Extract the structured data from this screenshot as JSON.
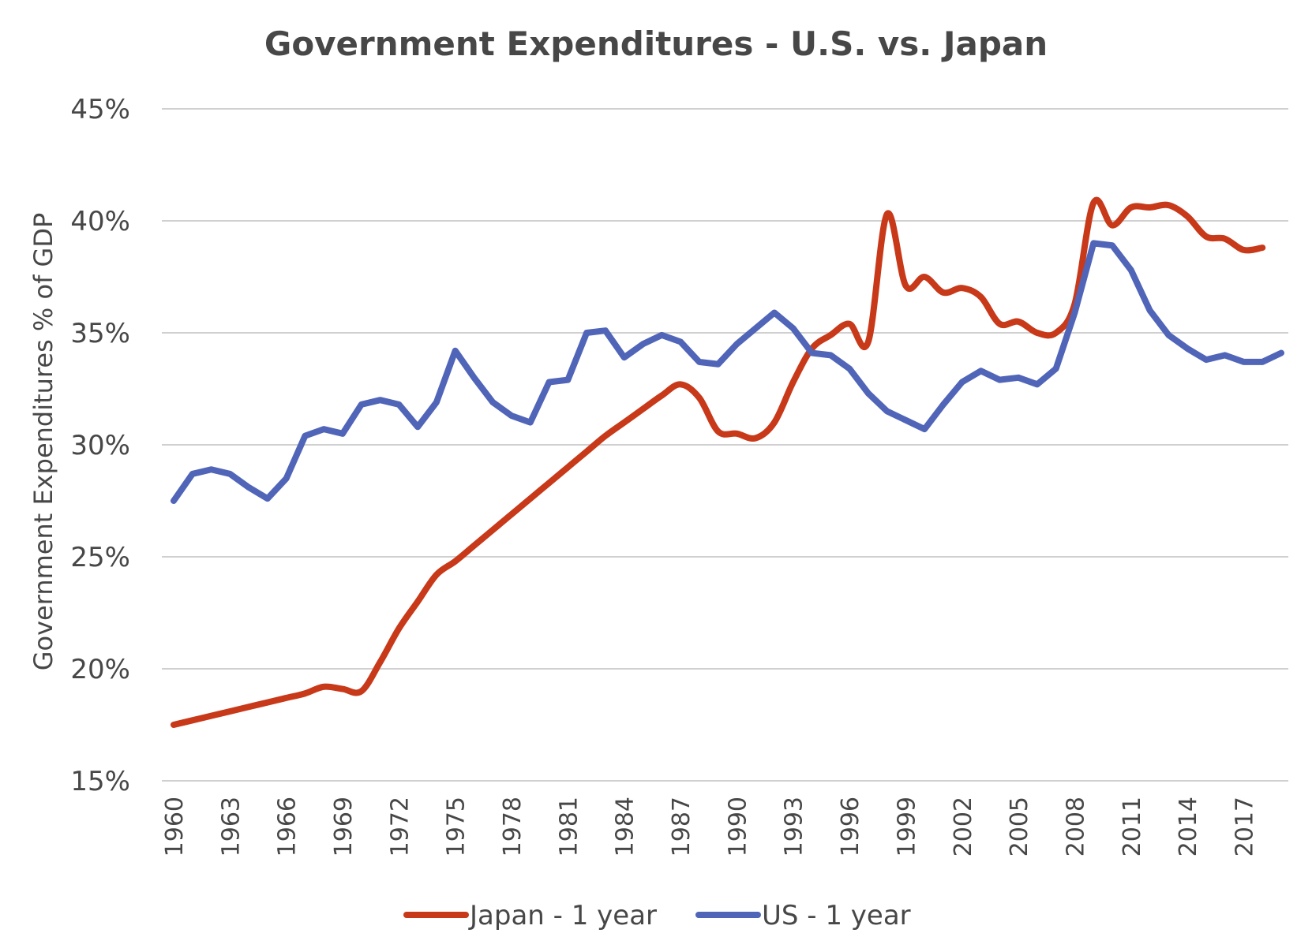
{
  "chart_data": {
    "type": "line",
    "title": "Government Expenditures - U.S. vs. Japan",
    "xlabel": "",
    "ylabel": "Government Expenditures % of GDP",
    "ylim": [
      15,
      45
    ],
    "yticks": [
      "15%",
      "20%",
      "25%",
      "30%",
      "35%",
      "40%",
      "45%"
    ],
    "ytick_values": [
      15,
      20,
      25,
      30,
      35,
      40,
      45
    ],
    "xlim": [
      1960,
      2019
    ],
    "xticks": [
      "1960",
      "1963",
      "1966",
      "1969",
      "1972",
      "1975",
      "1978",
      "1981",
      "1984",
      "1987",
      "1990",
      "1993",
      "1996",
      "1999",
      "2002",
      "2005",
      "2008",
      "2011",
      "2014",
      "2017"
    ],
    "grid": "horizontal",
    "legend_position": "bottom",
    "series": [
      {
        "name": "Japan - 1 year",
        "color": "#C8391A",
        "smooth": true,
        "x": [
          1960,
          1961,
          1962,
          1963,
          1964,
          1965,
          1966,
          1967,
          1968,
          1969,
          1970,
          1971,
          1972,
          1973,
          1974,
          1975,
          1976,
          1977,
          1978,
          1979,
          1980,
          1981,
          1982,
          1983,
          1984,
          1985,
          1986,
          1987,
          1988,
          1989,
          1990,
          1991,
          1992,
          1993,
          1994,
          1995,
          1996,
          1997,
          1998,
          1999,
          2000,
          2001,
          2002,
          2003,
          2004,
          2005,
          2006,
          2007,
          2008,
          2009,
          2010,
          2011,
          2012,
          2013,
          2014,
          2015,
          2016,
          2017,
          2018
        ],
        "values": [
          17.5,
          17.7,
          17.9,
          18.1,
          18.3,
          18.5,
          18.7,
          18.9,
          19.2,
          19.1,
          19.0,
          20.3,
          21.8,
          23.0,
          24.2,
          24.8,
          25.5,
          26.2,
          26.9,
          27.6,
          28.3,
          29.0,
          29.7,
          30.4,
          31.0,
          31.6,
          32.2,
          32.7,
          32.1,
          30.6,
          30.5,
          30.3,
          31.0,
          32.8,
          34.3,
          34.9,
          35.4,
          34.6,
          40.3,
          37.1,
          37.5,
          36.8,
          37.0,
          36.6,
          35.4,
          35.5,
          35.0,
          35.0,
          36.3,
          40.8,
          39.8,
          40.6,
          40.6,
          40.7,
          40.2,
          39.3,
          39.2,
          38.7,
          38.8
        ]
      },
      {
        "name": "US - 1 year",
        "color": "#5065B8",
        "smooth": false,
        "x": [
          1960,
          1961,
          1962,
          1963,
          1964,
          1965,
          1966,
          1967,
          1968,
          1969,
          1970,
          1971,
          1972,
          1973,
          1974,
          1975,
          1976,
          1977,
          1978,
          1979,
          1980,
          1981,
          1982,
          1983,
          1984,
          1985,
          1986,
          1987,
          1988,
          1989,
          1990,
          1991,
          1992,
          1993,
          1994,
          1995,
          1996,
          1997,
          1998,
          1999,
          2000,
          2001,
          2002,
          2003,
          2004,
          2005,
          2006,
          2007,
          2008,
          2009,
          2010,
          2011,
          2012,
          2013,
          2014,
          2015,
          2016,
          2017,
          2018,
          2019
        ],
        "values": [
          27.5,
          28.7,
          28.9,
          28.7,
          28.1,
          27.6,
          28.5,
          30.4,
          30.7,
          30.5,
          31.8,
          32.0,
          31.8,
          30.8,
          31.9,
          34.2,
          33.0,
          31.9,
          31.3,
          31.0,
          32.8,
          32.9,
          35.0,
          35.1,
          33.9,
          34.5,
          34.9,
          34.6,
          33.7,
          33.6,
          34.5,
          35.2,
          35.9,
          35.2,
          34.1,
          34.0,
          33.4,
          32.3,
          31.5,
          31.1,
          30.7,
          31.8,
          32.8,
          33.3,
          32.9,
          33.0,
          32.7,
          33.4,
          35.9,
          39.0,
          38.9,
          37.8,
          36.0,
          34.9,
          34.3,
          33.8,
          34.0,
          33.7,
          33.7,
          34.1
        ]
      }
    ]
  }
}
